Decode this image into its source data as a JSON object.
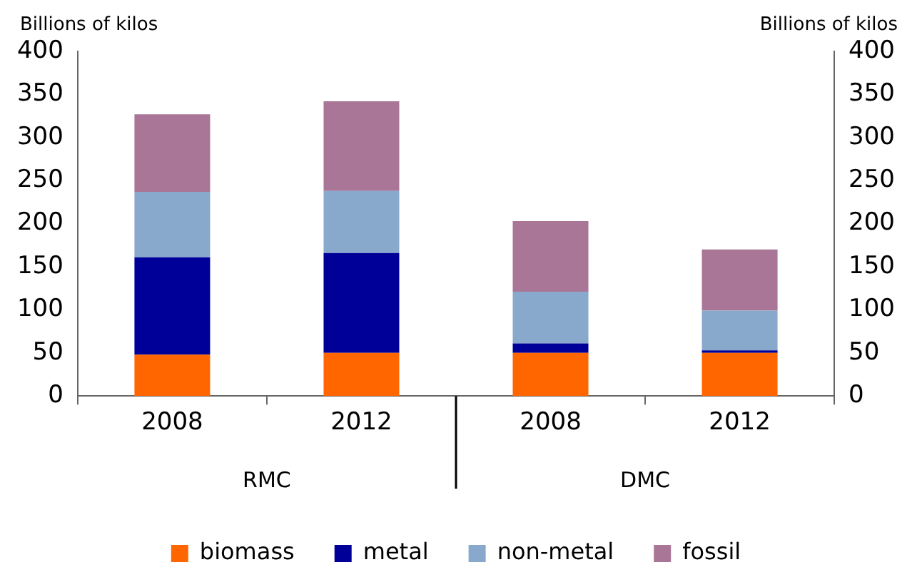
{
  "chart_data": {
    "type": "bar",
    "stacked": true,
    "categories": [
      "2008",
      "2012",
      "2008",
      "2012"
    ],
    "series": [
      {
        "name": "biomass",
        "color": "#ff6600",
        "values": [
          48,
          50,
          50,
          50
        ]
      },
      {
        "name": "metal",
        "color": "#000099",
        "values": [
          113,
          116,
          11,
          3
        ]
      },
      {
        "name": "non-metal",
        "color": "#88a9cc",
        "values": [
          76,
          72,
          60,
          46
        ]
      },
      {
        "name": "fossil",
        "color": "#a97698",
        "values": [
          90,
          104,
          82,
          71
        ]
      }
    ],
    "ylabel": "Billions of kilos",
    "y2label": "Billions of kilos",
    "ylim": [
      0,
      400
    ],
    "yticks": [
      0,
      50,
      100,
      150,
      200,
      250,
      300,
      350,
      400
    ],
    "y2lim": [
      0,
      400
    ],
    "y2ticks": [
      0,
      50,
      100,
      150,
      200,
      250,
      300,
      350,
      400
    ],
    "annotations": [
      "RMC",
      "DMC"
    ],
    "grid": false,
    "legend": "bottom"
  }
}
